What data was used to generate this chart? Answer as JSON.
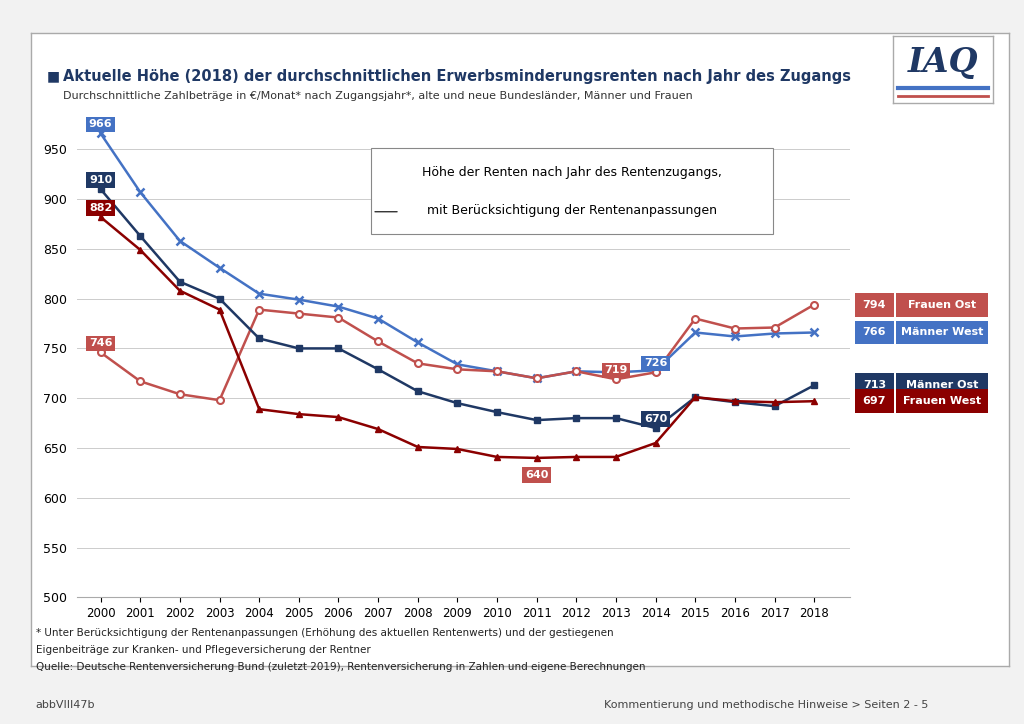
{
  "years": [
    2000,
    2001,
    2002,
    2003,
    2004,
    2005,
    2006,
    2007,
    2008,
    2009,
    2010,
    2011,
    2012,
    2013,
    2014,
    2015,
    2016,
    2017,
    2018
  ],
  "frauen_ost": [
    746,
    717,
    704,
    698,
    789,
    785,
    781,
    757,
    735,
    729,
    727,
    720,
    727,
    719,
    726,
    780,
    770,
    771,
    794
  ],
  "maenner_west": [
    966,
    907,
    858,
    831,
    805,
    799,
    792,
    780,
    756,
    734,
    727,
    720,
    727,
    726,
    728,
    766,
    762,
    765,
    766
  ],
  "maenner_ost": [
    910,
    863,
    817,
    800,
    760,
    750,
    750,
    729,
    707,
    695,
    686,
    678,
    680,
    680,
    670,
    701,
    696,
    692,
    713
  ],
  "frauen_west": [
    882,
    849,
    808,
    789,
    689,
    684,
    681,
    669,
    651,
    649,
    641,
    640,
    641,
    641,
    655,
    701,
    697,
    696,
    697
  ],
  "title": "Aktuelle Höhe (2018) der durchschnittlichen Erwerbsminderungsrenten nach Jahr des Zugangs",
  "subtitle": "Durchschnittliche Zahlbeträge in €/Monat* nach Zugangsjahr*, alte und neue Bundesländer, Männer und Frauen",
  "inset_line1": "Höhe der Renten nach Jahr des Rentenzugangs,",
  "inset_line2": "mit Berücksichtigung der Rentenanpassungen",
  "footnote1": "* Unter Berücksichtigung der Rentenanpassungen (Erhöhung des aktuellen Rentenwerts) und der gestiegenen",
  "footnote2": "Eigenbeiträge zur Kranken- und Pflegeversicherung der Rentner",
  "footnote3": "Quelle: Deutsche Rentenversicherung Bund (zuletzt 2019), Rentenversicherung in Zahlen und eigene Berechnungen",
  "bottom_left": "abbVIII47b",
  "bottom_right": "Kommentierung und methodische Hinweise > Seiten 2 - 5",
  "col_mw": "#4472C4",
  "col_fo": "#C0504D",
  "col_mo": "#1F3864",
  "col_fw": "#8B0000",
  "lbl_fo": "Frauen Ost",
  "lbl_mw": "Männer West",
  "lbl_mo": "Männer Ost",
  "lbl_fw": "Frauen West",
  "ylim_min": 500,
  "ylim_max": 980,
  "yticks": [
    500,
    550,
    600,
    650,
    700,
    750,
    800,
    850,
    900,
    950
  ]
}
